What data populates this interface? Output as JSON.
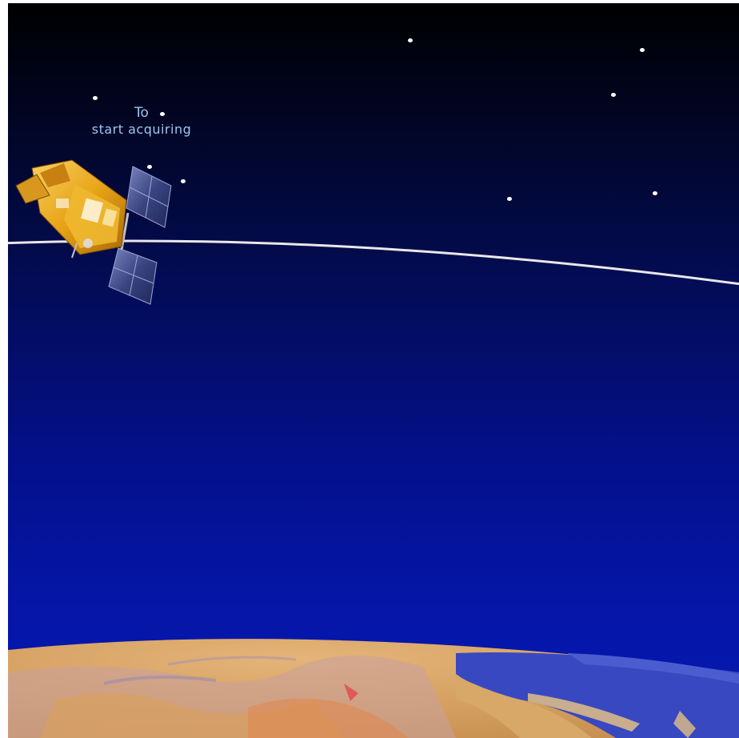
{
  "caption": {
    "line1": "To",
    "line2": "start acquiring"
  },
  "scene": {
    "icons": [
      "satellite-icon",
      "orbit-path",
      "earth-globe",
      "star"
    ],
    "colors": {
      "sky_top": "#000000",
      "sky_bottom": "#0618b0",
      "orbit": "#e8e8e8",
      "caption": "#9ec6f0",
      "satellite_gold": "#e8a418",
      "solar_panel": "#3a4480",
      "ocean": "#3848c0",
      "land": "#d9a868"
    }
  }
}
